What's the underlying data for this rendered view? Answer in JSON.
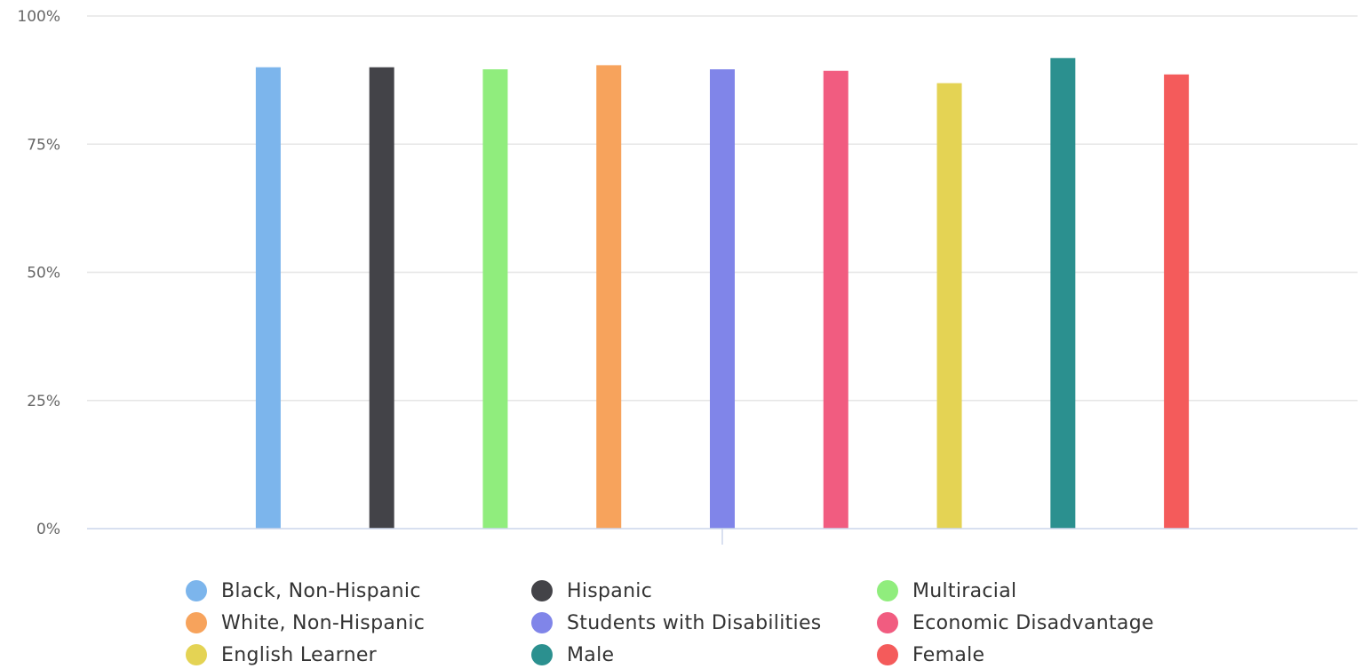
{
  "chart_data": {
    "type": "bar",
    "categories": [
      ""
    ],
    "ylim": [
      0,
      100
    ],
    "y_ticks": [
      "0%",
      "25%",
      "50%",
      "75%",
      "100%"
    ],
    "y_tick_values": [
      0,
      25,
      50,
      75,
      100
    ],
    "grid": true,
    "legend_position": "bottom",
    "series": [
      {
        "name": "Black, Non-Hispanic",
        "values": [
          90
        ],
        "color": "#7cb5ec"
      },
      {
        "name": "Hispanic",
        "values": [
          90
        ],
        "color": "#434348"
      },
      {
        "name": "Multiracial",
        "values": [
          89.6
        ],
        "color": "#90ed7d"
      },
      {
        "name": "White, Non-Hispanic",
        "values": [
          90.4
        ],
        "color": "#f7a35c"
      },
      {
        "name": "Students with Disabilities",
        "values": [
          89.6
        ],
        "color": "#8085e9"
      },
      {
        "name": "Economic Disadvantage",
        "values": [
          89.3
        ],
        "color": "#f15c80"
      },
      {
        "name": "English Learner",
        "values": [
          86.9
        ],
        "color": "#e4d354"
      },
      {
        "name": "Male",
        "values": [
          91.8
        ],
        "color": "#2b908f"
      },
      {
        "name": "Female",
        "values": [
          88.6
        ],
        "color": "#f45b5b"
      }
    ]
  }
}
